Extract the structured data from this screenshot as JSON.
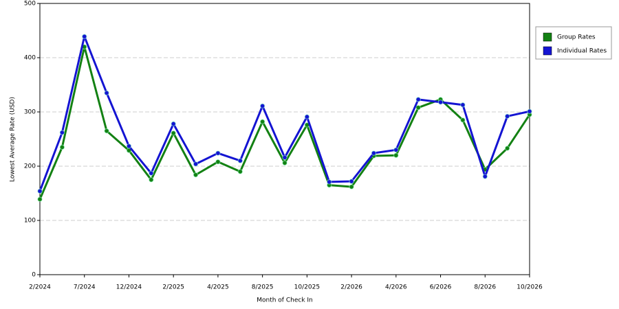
{
  "chart_data": {
    "type": "line",
    "x_label": "Month of Check In",
    "y_label": "Lowest Average Rate (USD)",
    "categories": [
      "2/2024",
      null,
      "7/2024",
      null,
      "12/2024",
      null,
      "2/2025",
      null,
      "4/2025",
      null,
      "8/2025",
      null,
      "10/2025",
      null,
      "2/2026",
      null,
      "4/2026",
      null,
      "6/2026",
      null,
      "8/2026",
      null,
      "10/2026"
    ],
    "series": [
      {
        "name": "Group Rates",
        "color": "#138113",
        "values": [
          139,
          235,
          420,
          265,
          229,
          175,
          261,
          184,
          208,
          190,
          282,
          206,
          276,
          165,
          162,
          219,
          220,
          308,
          323,
          285,
          194,
          233,
          295
        ]
      },
      {
        "name": "Individual Rates",
        "color": "#1414d2",
        "values": [
          154,
          262,
          439,
          335,
          237,
          187,
          278,
          204,
          224,
          210,
          311,
          216,
          291,
          171,
          172,
          224,
          230,
          323,
          318,
          313,
          181,
          292,
          301
        ]
      }
    ],
    "ylim": [
      0,
      500
    ],
    "yticks": [
      0,
      100,
      200,
      300,
      400,
      500
    ],
    "grid": true,
    "legend": "right"
  }
}
